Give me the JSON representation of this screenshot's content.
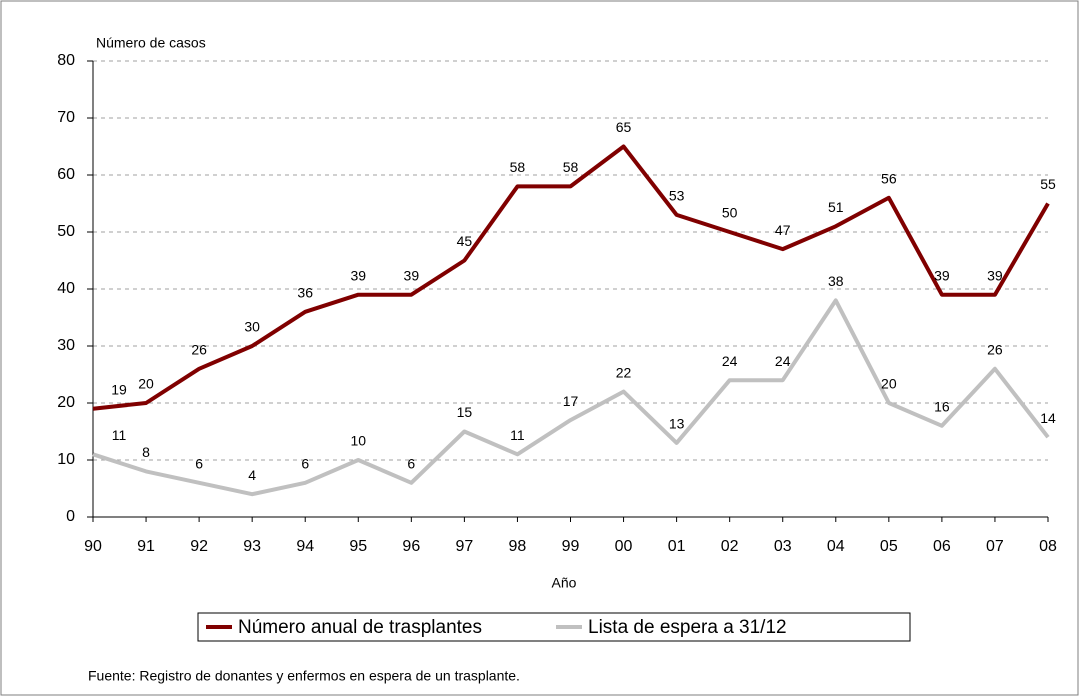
{
  "chart_data": {
    "type": "line",
    "y_label": "Número de casos",
    "x_label": "Año",
    "categories": [
      "90",
      "91",
      "92",
      "93",
      "94",
      "95",
      "96",
      "97",
      "98",
      "99",
      "00",
      "01",
      "02",
      "03",
      "04",
      "05",
      "06",
      "07",
      "08"
    ],
    "series": [
      {
        "name": "Número anual de trasplantes",
        "color": "#800000",
        "values": [
          19,
          20,
          26,
          30,
          36,
          39,
          39,
          45,
          58,
          58,
          65,
          53,
          50,
          47,
          51,
          56,
          39,
          39,
          55
        ]
      },
      {
        "name": "Lista de espera a 31/12",
        "color": "#c0c0c0",
        "values": [
          11,
          8,
          6,
          4,
          6,
          10,
          6,
          15,
          11,
          17,
          22,
          13,
          24,
          24,
          38,
          20,
          16,
          26,
          14
        ]
      }
    ],
    "ylim": [
      0,
      80
    ],
    "yticks": [
      0,
      10,
      20,
      30,
      40,
      50,
      60,
      70,
      80
    ],
    "grid": true,
    "source": "Fuente: Registro de donantes y enfermos en espera de un trasplante."
  }
}
